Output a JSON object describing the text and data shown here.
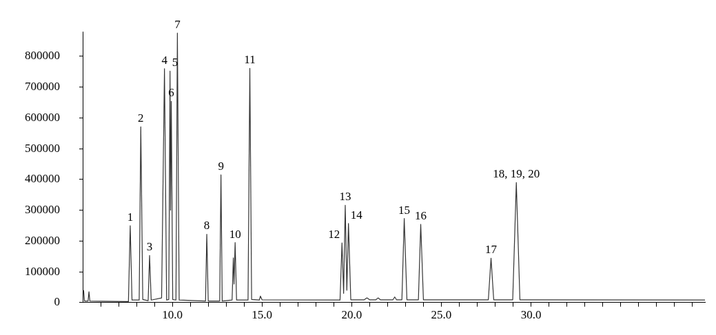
{
  "chart_data": {
    "type": "line",
    "xlim": [
      5,
      39.7
    ],
    "ylim": [
      0,
      880000
    ],
    "xticks": [
      {
        "value": 6,
        "label": null
      },
      {
        "value": 7,
        "label": null
      },
      {
        "value": 8,
        "label": null
      },
      {
        "value": 9,
        "label": null
      },
      {
        "value": 10,
        "label": "10.0"
      },
      {
        "value": 11,
        "label": null
      },
      {
        "value": 12,
        "label": null
      },
      {
        "value": 13,
        "label": null
      },
      {
        "value": 14,
        "label": null
      },
      {
        "value": 15,
        "label": "15.0"
      },
      {
        "value": 16,
        "label": null
      },
      {
        "value": 17,
        "label": null
      },
      {
        "value": 18,
        "label": null
      },
      {
        "value": 19,
        "label": null
      },
      {
        "value": 20,
        "label": "20.0"
      },
      {
        "value": 21,
        "label": null
      },
      {
        "value": 22,
        "label": null
      },
      {
        "value": 23,
        "label": null
      },
      {
        "value": 24,
        "label": null
      },
      {
        "value": 25,
        "label": "25.0"
      },
      {
        "value": 26,
        "label": null
      },
      {
        "value": 27,
        "label": null
      },
      {
        "value": 28,
        "label": null
      },
      {
        "value": 29,
        "label": null
      },
      {
        "value": 30,
        "label": "30.0"
      },
      {
        "value": 31,
        "label": null
      },
      {
        "value": 32,
        "label": null
      },
      {
        "value": 33,
        "label": null
      },
      {
        "value": 34,
        "label": null
      },
      {
        "value": 35,
        "label": null
      },
      {
        "value": 36,
        "label": null
      },
      {
        "value": 37,
        "label": null
      },
      {
        "value": 38,
        "label": null
      },
      {
        "value": 39,
        "label": null
      }
    ],
    "yticks": [
      0,
      100000,
      200000,
      300000,
      400000,
      500000,
      600000,
      700000,
      800000
    ],
    "grid": false,
    "marker": "none",
    "line_style": "solid",
    "series": [
      {
        "color": "#333333",
        "x": [
          5.05,
          5.1,
          5.3,
          5.35,
          5.4,
          7.55,
          7.65,
          7.75,
          8.15,
          8.24,
          8.35,
          8.65,
          8.73,
          8.82,
          9.4,
          9.56,
          9.68,
          9.8,
          9.87,
          9.9,
          9.94,
          10.02,
          10.2,
          10.28,
          10.38,
          11.85,
          11.92,
          12.0,
          12.64,
          12.71,
          12.78,
          13.33,
          13.4,
          13.44,
          13.5,
          13.58,
          14.22,
          14.32,
          14.42,
          14.85,
          14.91,
          15.0,
          19.35,
          19.46,
          19.55,
          19.64,
          19.73,
          19.82,
          19.95,
          20.7,
          20.85,
          21.0,
          21.35,
          21.47,
          21.6,
          22.3,
          22.4,
          22.5,
          22.8,
          22.93,
          23.08,
          23.72,
          23.85,
          24.0,
          27.62,
          27.77,
          27.92,
          28.98,
          29.18,
          29.38,
          39.7
        ],
        "values": [
          40000,
          5000,
          5000,
          35000,
          5000,
          3000,
          250000,
          8000,
          8000,
          571000,
          10000,
          6000,
          153000,
          8000,
          15000,
          760000,
          8000,
          10000,
          752000,
          300000,
          654000,
          10000,
          8000,
          876000,
          8000,
          5000,
          222000,
          5000,
          5000,
          415000,
          5000,
          8000,
          145000,
          60000,
          195000,
          8000,
          8000,
          761000,
          10000,
          8000,
          21000,
          9000,
          8000,
          194000,
          30000,
          316000,
          40000,
          257000,
          9000,
          9000,
          15000,
          9000,
          9000,
          15000,
          9000,
          9000,
          18000,
          9000,
          9000,
          273000,
          9000,
          9000,
          254000,
          9000,
          9000,
          144000,
          9000,
          9000,
          390000,
          9000,
          8000
        ]
      }
    ],
    "annotations": [
      {
        "text": "1",
        "x": 7.65,
        "y": 250000
      },
      {
        "text": "2",
        "x": 8.24,
        "y": 571000
      },
      {
        "text": "3",
        "x": 8.73,
        "y": 153000
      },
      {
        "text": "4",
        "x": 9.56,
        "y": 760000
      },
      {
        "text": "5",
        "x": 9.87,
        "y": 752000
      },
      {
        "text": "6",
        "x": 9.94,
        "y": 654000
      },
      {
        "text": "7",
        "x": 10.28,
        "y": 876000
      },
      {
        "text": "8",
        "x": 11.92,
        "y": 222000
      },
      {
        "text": "9",
        "x": 12.71,
        "y": 415000
      },
      {
        "text": "10",
        "x": 13.5,
        "y": 195000
      },
      {
        "text": "11",
        "x": 14.32,
        "y": 761000
      },
      {
        "text": "12",
        "x": 19.46,
        "y": 194000
      },
      {
        "text": "13",
        "x": 19.64,
        "y": 316000
      },
      {
        "text": "14",
        "x": 19.82,
        "y": 257000
      },
      {
        "text": "15",
        "x": 22.93,
        "y": 273000
      },
      {
        "text": "16",
        "x": 23.85,
        "y": 254000
      },
      {
        "text": "17",
        "x": 27.77,
        "y": 144000
      },
      {
        "text": "18, 19, 20",
        "x": 29.18,
        "y": 390000
      }
    ]
  }
}
